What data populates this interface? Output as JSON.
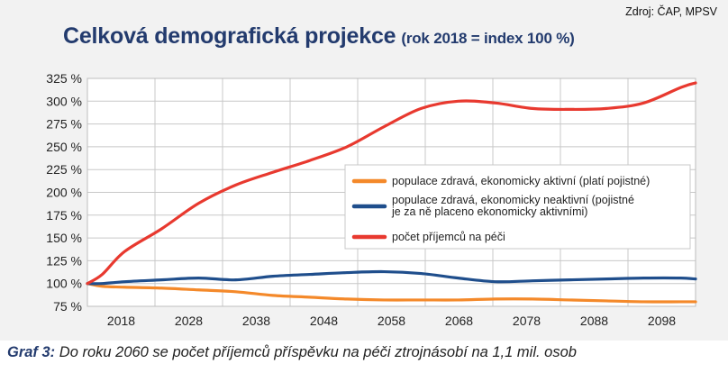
{
  "source": "Zdroj: ČAP, MPSV",
  "title": "Celková demografická projekce",
  "subtitle": "(rok 2018 = index 100 %)",
  "caption": {
    "label": "Graf 3:",
    "text": "Do roku 2060 se počet příjemců příspěvku na péči ztrojnásobí na 1,1 mil. osob"
  },
  "chart_data": {
    "type": "line",
    "xlim": [
      2018,
      2100
    ],
    "ylim": [
      75,
      325
    ],
    "yticks": [
      75,
      100,
      125,
      150,
      175,
      200,
      225,
      250,
      275,
      300,
      325
    ],
    "ytick_labels": [
      "75 %",
      "100 %",
      "125 %",
      "150 %",
      "175 %",
      "200 %",
      "225 %",
      "250 %",
      "275 %",
      "300 %",
      "325 %"
    ],
    "xtick_labels": [
      "2018",
      "2028",
      "2038",
      "2048",
      "2058",
      "2068",
      "2078",
      "2088",
      "2098"
    ],
    "grid": true,
    "legend_position": "center-right",
    "x": [
      2018,
      2020,
      2023,
      2028,
      2033,
      2038,
      2043,
      2048,
      2053,
      2058,
      2063,
      2068,
      2073,
      2078,
      2083,
      2088,
      2093,
      2098,
      2100
    ],
    "series": [
      {
        "name": "populace zdravá, ekonomicky aktivní (platí pojistné)",
        "color": "#f4892a",
        "values": [
          100,
          97,
          96,
          95,
          93,
          91,
          87,
          85,
          83,
          82,
          82,
          82,
          83,
          83,
          82,
          81,
          80,
          80,
          80
        ]
      },
      {
        "name": "populace zdravá, ekonomicky neaktivní (pojistné je za ně placeno ekonomicky aktivními)",
        "color": "#1f4e8c",
        "values": [
          100,
          100,
          102,
          104,
          106,
          104,
          108,
          110,
          112,
          113,
          111,
          106,
          102,
          103,
          104,
          105,
          106,
          106,
          105
        ]
      },
      {
        "name": "počet příjemců na péči",
        "color": "#e8392f",
        "values": [
          100,
          110,
          135,
          160,
          188,
          208,
          222,
          235,
          250,
          272,
          292,
          300,
          298,
          292,
          291,
          292,
          298,
          315,
          320
        ]
      }
    ]
  }
}
